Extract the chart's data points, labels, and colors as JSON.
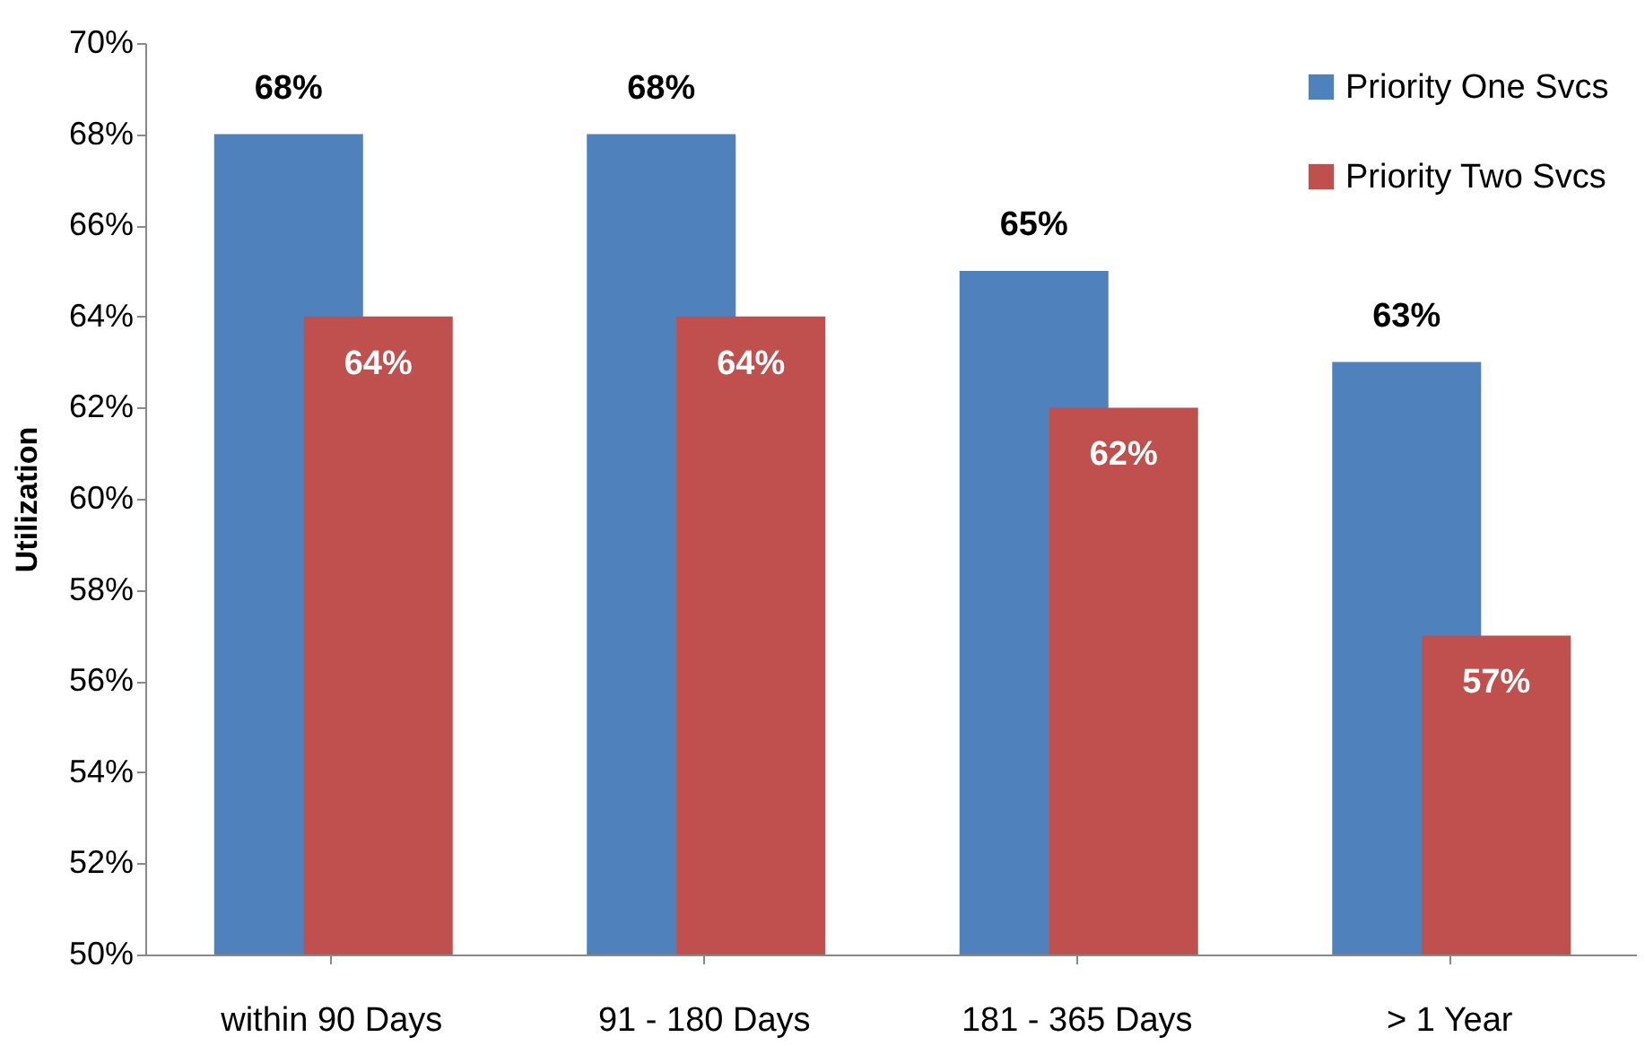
{
  "chart_data": {
    "type": "bar",
    "ylabel": "Utilization",
    "categories": [
      "within 90 Days",
      "91 - 180 Days",
      "181 - 365 Days",
      "> 1 Year"
    ],
    "series": [
      {
        "name": "Priority One Svcs",
        "color": "#4f81bd",
        "values": [
          68,
          68,
          65,
          63
        ],
        "value_labels": [
          "68%",
          "68%",
          "65%",
          "63%"
        ]
      },
      {
        "name": "Priority Two Svcs",
        "color": "#c0504d",
        "values": [
          64,
          64,
          62,
          57
        ],
        "value_labels": [
          "64%",
          "64%",
          "62%",
          "57%"
        ]
      }
    ],
    "ylim": [
      50,
      70
    ],
    "yticks": [
      {
        "value": 50,
        "label": "50%"
      },
      {
        "value": 52,
        "label": "52%"
      },
      {
        "value": 54,
        "label": "54%"
      },
      {
        "value": 56,
        "label": "56%"
      },
      {
        "value": 58,
        "label": "58%"
      },
      {
        "value": 60,
        "label": "60%"
      },
      {
        "value": 62,
        "label": "62%"
      },
      {
        "value": 64,
        "label": "64%"
      },
      {
        "value": 66,
        "label": "66%"
      },
      {
        "value": 68,
        "label": "68%"
      },
      {
        "value": 70,
        "label": "70%"
      }
    ],
    "legend": "top right",
    "grid": false
  }
}
